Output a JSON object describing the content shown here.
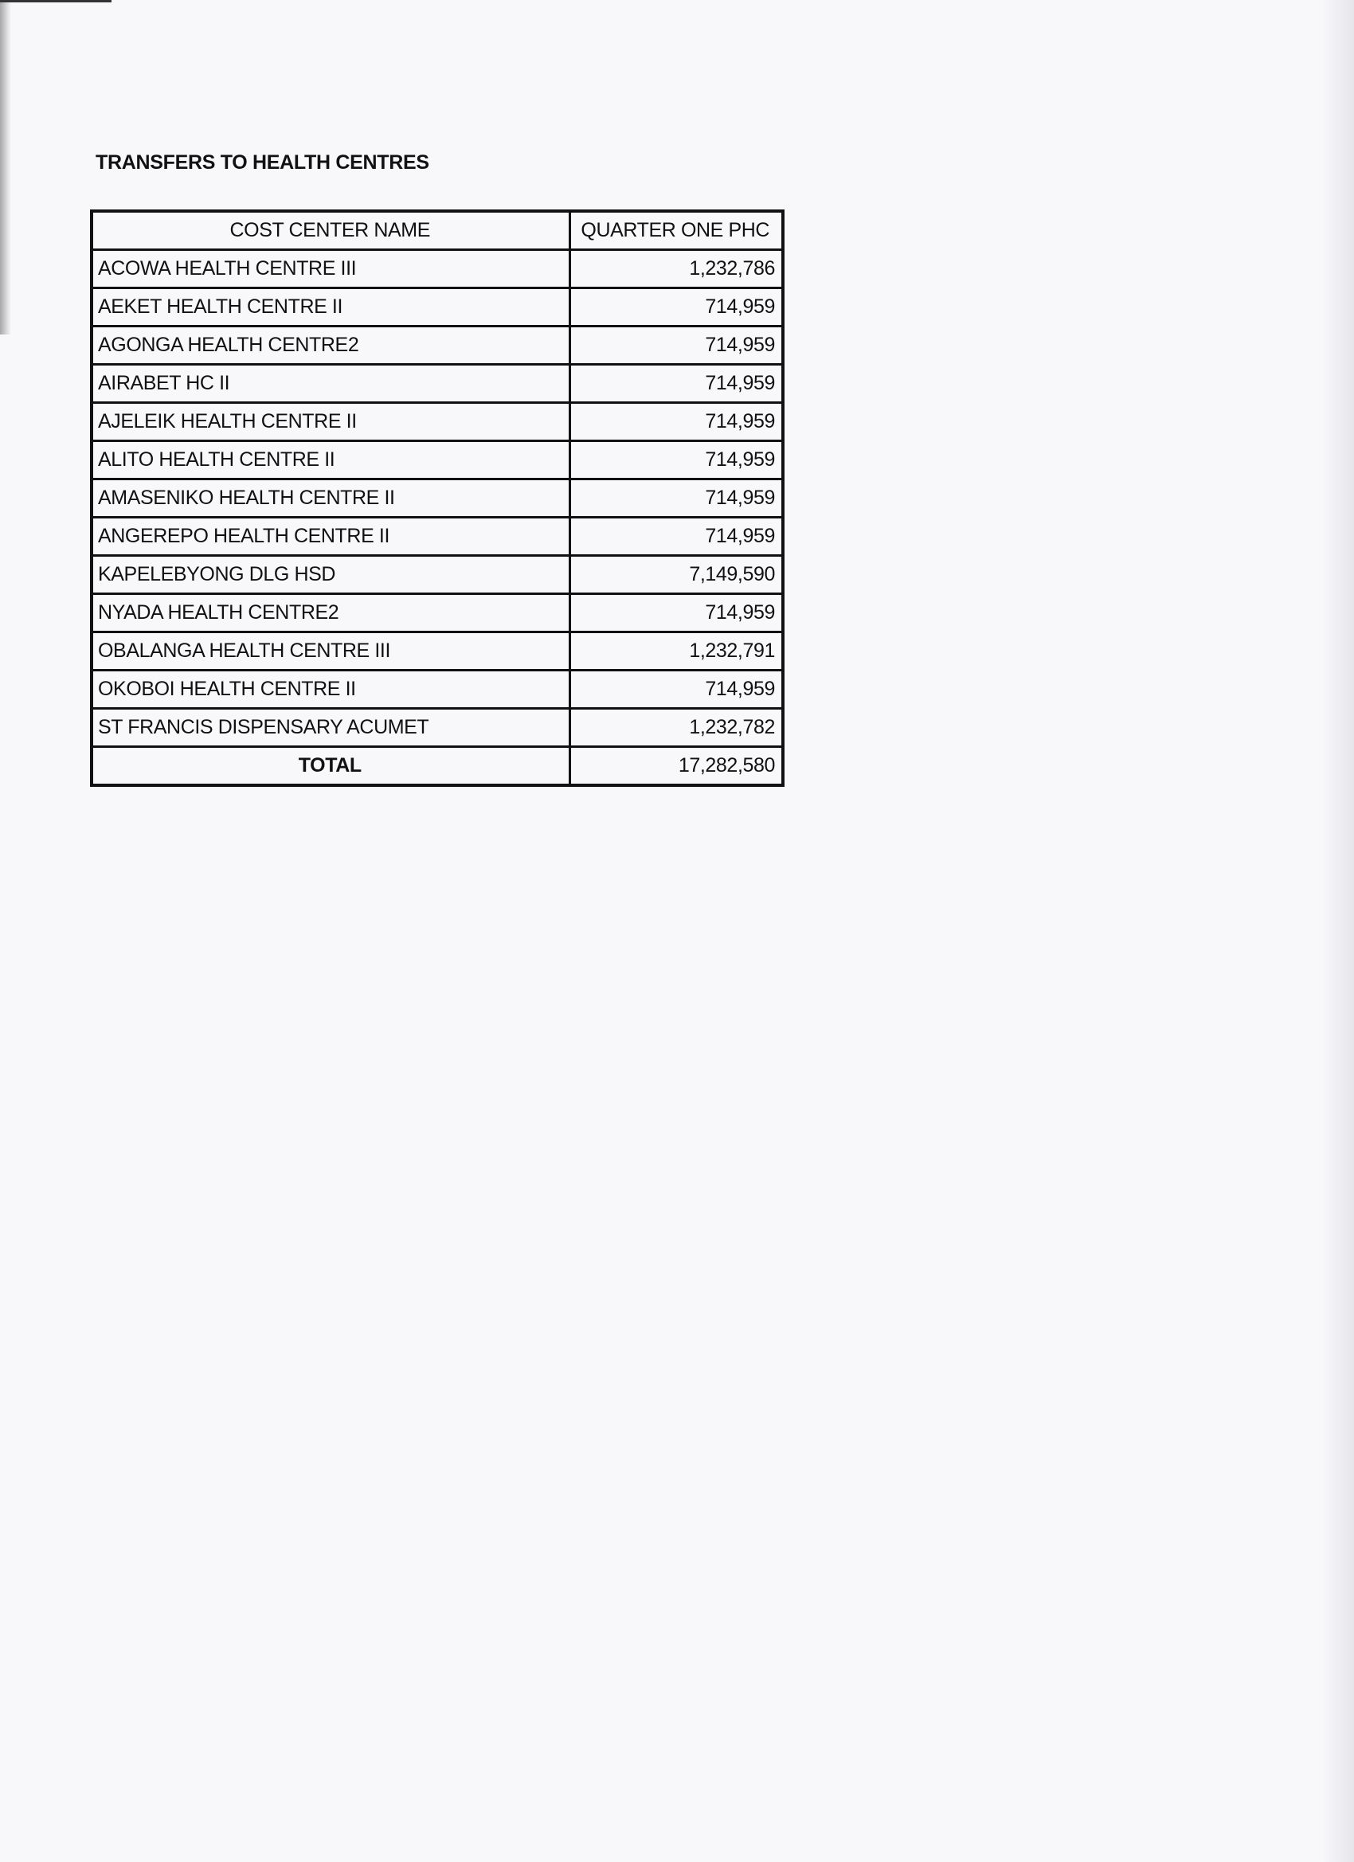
{
  "title": "TRANSFERS TO HEALTH CENTRES",
  "table": {
    "headers": [
      "COST CENTER NAME",
      "QUARTER ONE PHC"
    ],
    "rows": [
      [
        "ACOWA HEALTH CENTRE III",
        "1,232,786"
      ],
      [
        "AEKET HEALTH CENTRE II",
        "714,959"
      ],
      [
        "AGONGA HEALTH CENTRE2",
        "714,959"
      ],
      [
        "AIRABET HC II",
        "714,959"
      ],
      [
        "AJELEIK HEALTH CENTRE II",
        "714,959"
      ],
      [
        "ALITO HEALTH CENTRE II",
        "714,959"
      ],
      [
        "AMASENIKO HEALTH CENTRE II",
        "714,959"
      ],
      [
        "ANGEREPO HEALTH CENTRE II",
        "714,959"
      ],
      [
        "KAPELEBYONG DLG HSD",
        "7,149,590"
      ],
      [
        "NYADA HEALTH CENTRE2",
        "714,959"
      ],
      [
        "OBALANGA HEALTH CENTRE III",
        "1,232,791"
      ],
      [
        "OKOBOI HEALTH CENTRE II",
        "714,959"
      ],
      [
        "ST FRANCIS DISPENSARY ACUMET",
        "1,232,782"
      ]
    ],
    "total": [
      "TOTAL",
      "17,282,580"
    ]
  }
}
